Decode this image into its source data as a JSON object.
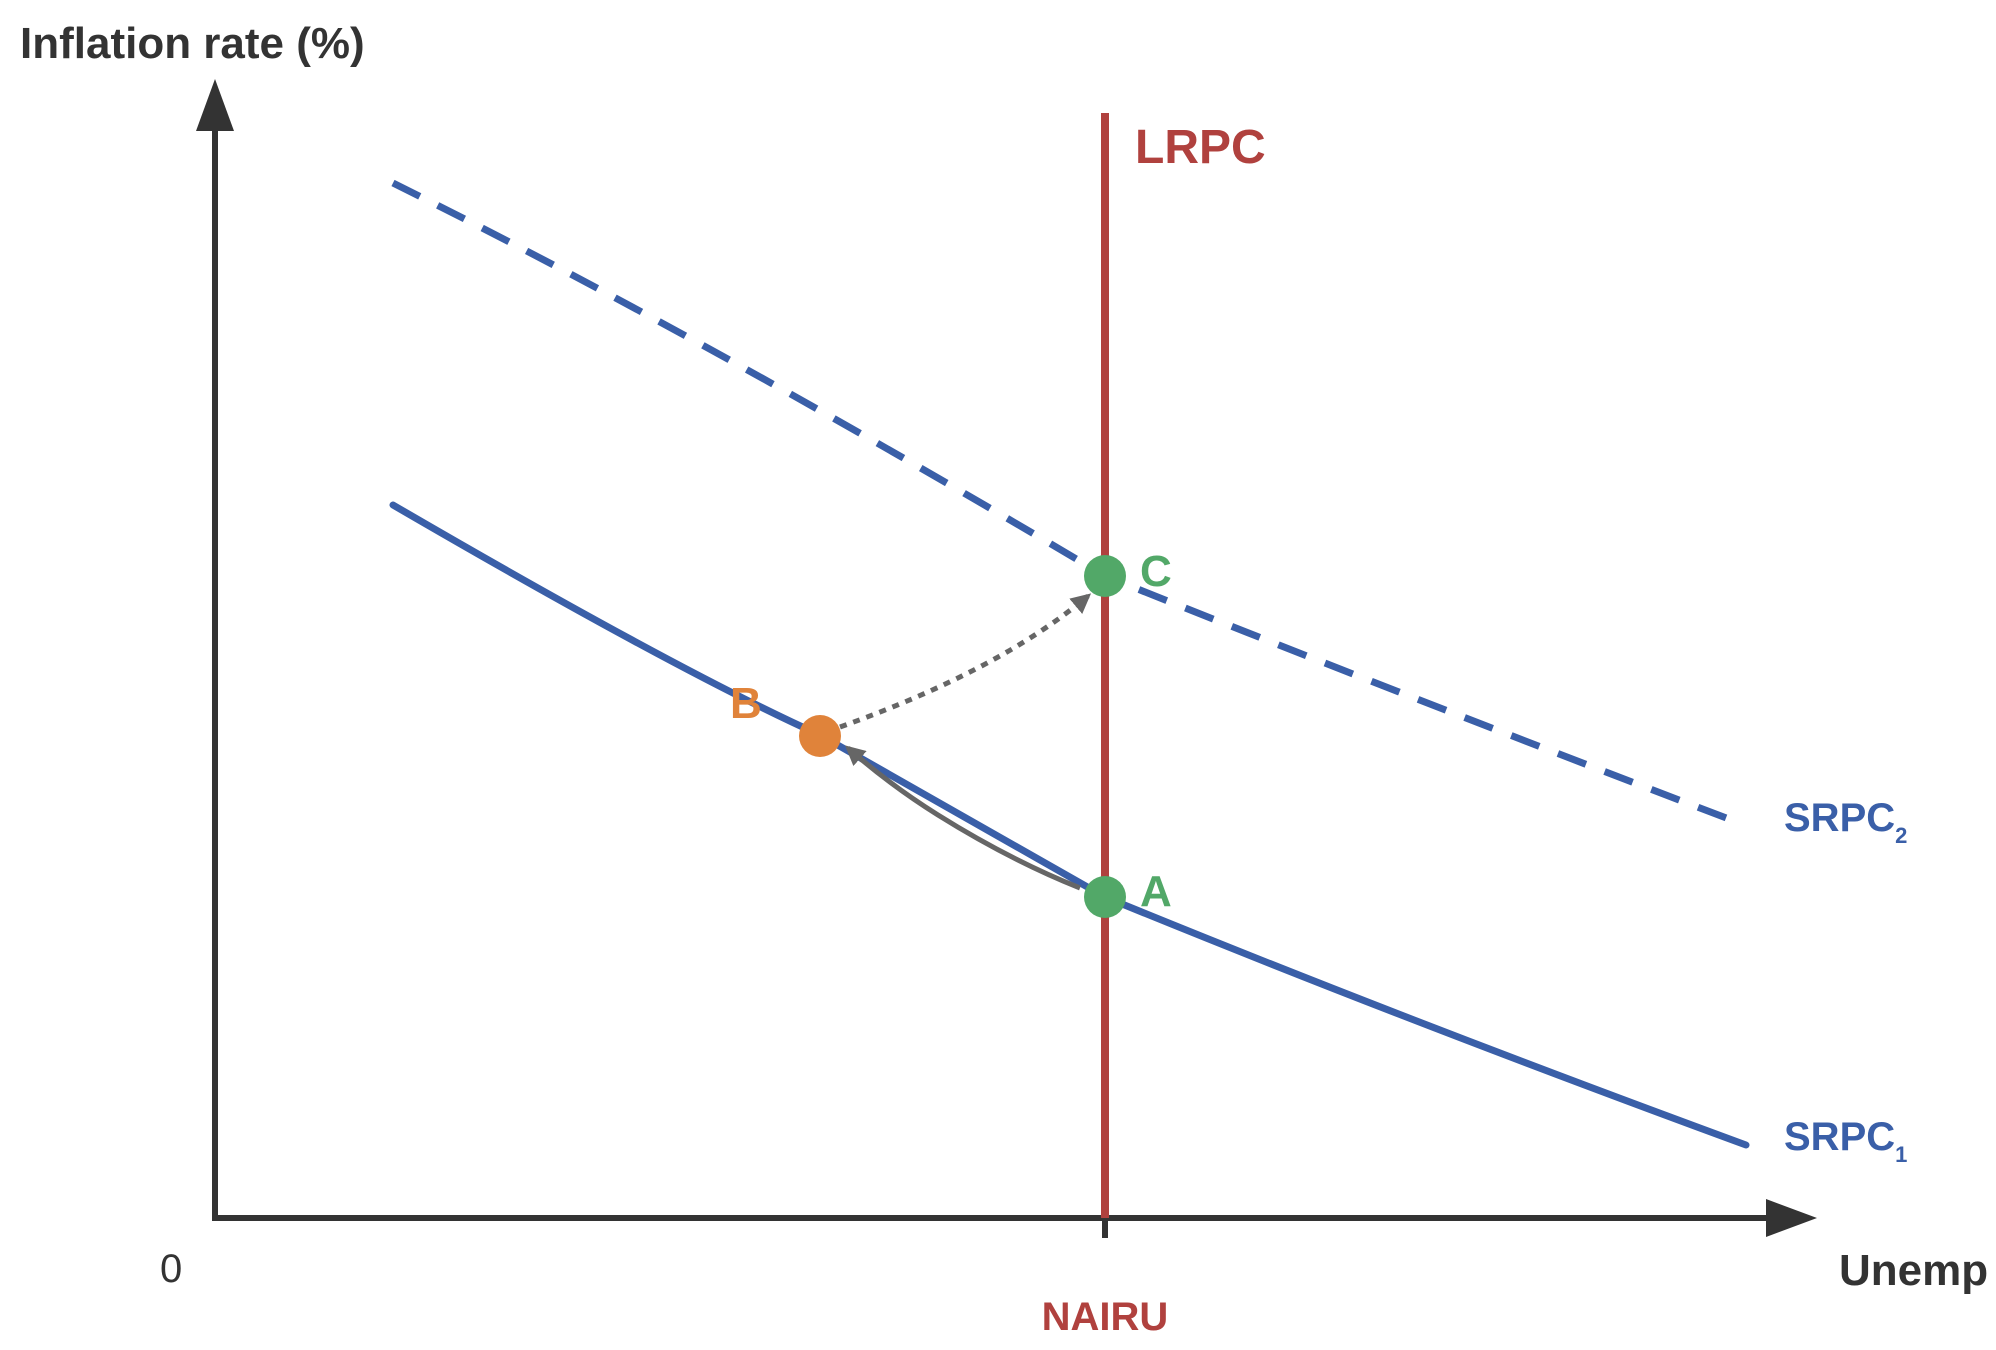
{
  "axes": {
    "y_label": "Inflation rate (%)",
    "x_label": "Unemp",
    "origin_label": "0",
    "x_tick_label": "NAIRU"
  },
  "curves": {
    "lrpc": {
      "label": "LRPC",
      "color": "#b0413e"
    },
    "srpc1": {
      "label": "SRPC",
      "subscript": "1",
      "color": "#3a5fa8",
      "style": "solid"
    },
    "srpc2": {
      "label": "SRPC",
      "subscript": "2",
      "color": "#3a5fa8",
      "style": "dashed"
    }
  },
  "points": {
    "a": {
      "label": "A",
      "color": "#52a868"
    },
    "b": {
      "label": "B",
      "color": "#e0833a"
    },
    "c": {
      "label": "C",
      "color": "#52a868"
    }
  },
  "arrows": {
    "a_to_b": {
      "style": "solid",
      "color": "#666666"
    },
    "b_to_c": {
      "style": "dotted",
      "color": "#666666"
    }
  },
  "colors": {
    "axis": "#333333",
    "background": "#ffffff"
  }
}
